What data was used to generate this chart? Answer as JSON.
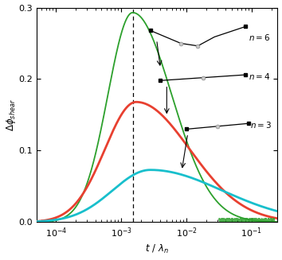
{
  "ylim": [
    0,
    0.3
  ],
  "xlim": [
    5e-05,
    0.25
  ],
  "dashed_vline_x": 0.0015,
  "curve_colors": {
    "n6": "#2ca02c",
    "n4": "#e84030",
    "n3": "#18bfcc"
  },
  "yticks": [
    0,
    0.1,
    0.2,
    0.3
  ],
  "xlabel_math": "t / \\lambda_n",
  "ylabel_math": "\\Delta\\phi_{shear}"
}
